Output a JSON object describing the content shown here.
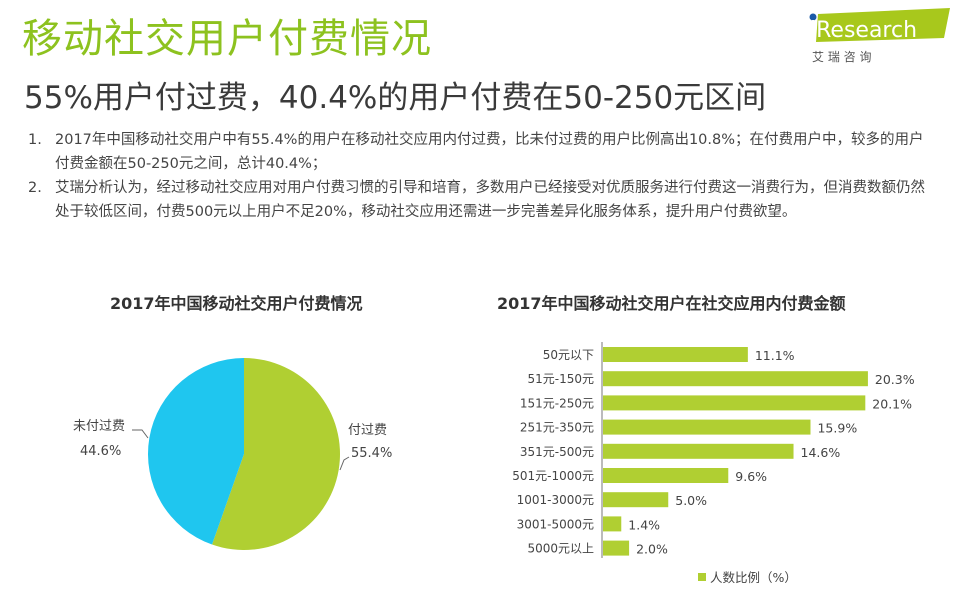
{
  "header": {
    "title": "移动社交用户付费情况",
    "subtitle": "55%用户付过费，40.4%的用户付费在50-250元区间",
    "logo": {
      "brand": "iResearch",
      "cn": "艾 瑞 咨 询"
    }
  },
  "notes": [
    {
      "num": "1.",
      "text": "2017年中国移动社交用户中有55.4%的用户在移动社交应用内付过费，比未付过费的用户比例高出10.8%；在付费用户中，较多的用户付费金额在50-250元之间，总计40.4%；"
    },
    {
      "num": "2.",
      "text": "艾瑞分析认为，经过移动社交应用对用户付费习惯的引导和培育，多数用户已经接受对优质服务进行付费这一消费行为，但消费数额仍然处于较低区间，付费500元以上用户不足20%，移动社交应用还需进一步完善差异化服务体系，提升用户付费欲望。"
    }
  ],
  "colors": {
    "green": "#b0cf32",
    "blue": "#1fc6ef",
    "title": "#8dc21f"
  },
  "chart_data": [
    {
      "type": "pie",
      "title": "2017年中国移动社交用户付费情况",
      "slices": [
        {
          "label": "付过费",
          "value": 55.4,
          "display": "55.4%",
          "color": "#b0cf32"
        },
        {
          "label": "未付过费",
          "value": 44.6,
          "display": "44.6%",
          "color": "#1fc6ef"
        }
      ]
    },
    {
      "type": "bar",
      "orientation": "horizontal",
      "title": "2017年中国移动社交用户在社交应用内付费金额",
      "categories": [
        "50元以下",
        "51元-150元",
        "151元-250元",
        "251元-350元",
        "351元-500元",
        "501元-1000元",
        "1001-3000元",
        "3001-5000元",
        "5000元以上"
      ],
      "values": [
        11.1,
        20.3,
        20.1,
        15.9,
        14.6,
        9.6,
        5.0,
        1.4,
        2.0
      ],
      "labels": [
        "11.1%",
        "20.3%",
        "20.1%",
        "15.9%",
        "14.6%",
        "9.6%",
        "5.0%",
        "1.4%",
        "2.0%"
      ],
      "legend": "人数比例（%）",
      "legend_position": "bottom",
      "color": "#b0cf32"
    }
  ]
}
